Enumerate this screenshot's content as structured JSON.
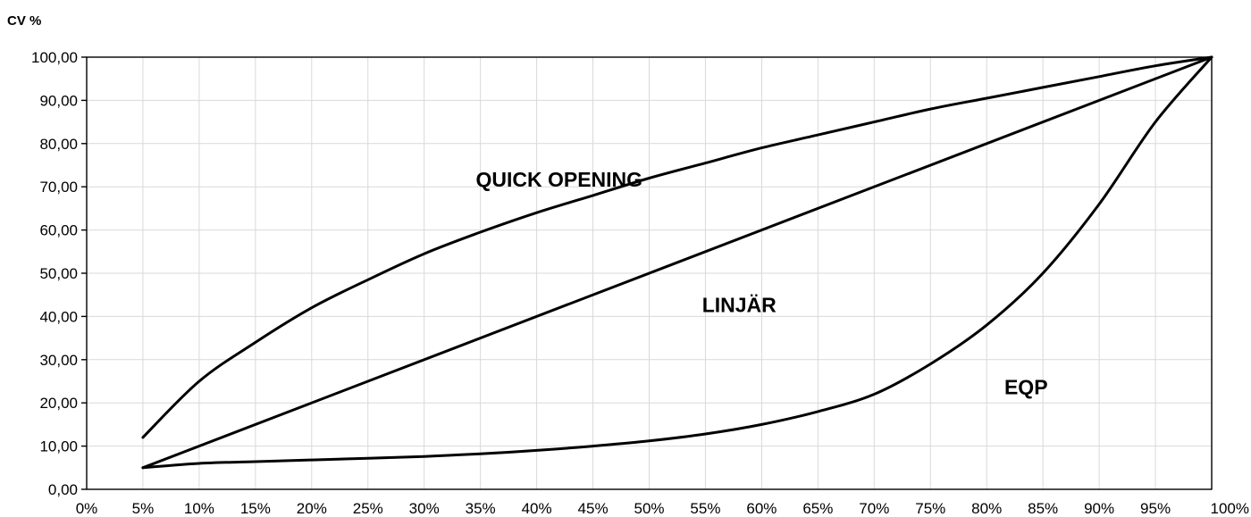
{
  "chart_data": {
    "type": "line",
    "ylabel": "CV %",
    "xlabel": "",
    "x_tick_labels": [
      "0%",
      "5%",
      "10%",
      "15%",
      "20%",
      "25%",
      "30%",
      "35%",
      "40%",
      "45%",
      "50%",
      "55%",
      "60%",
      "65%",
      "70%",
      "75%",
      "80%",
      "85%",
      "90%",
      "95%",
      "100%"
    ],
    "y_tick_labels": [
      "0,00",
      "10,00",
      "20,00",
      "30,00",
      "40,00",
      "50,00",
      "60,00",
      "70,00",
      "80,00",
      "90,00",
      "100,00"
    ],
    "xlim": [
      0,
      100
    ],
    "ylim": [
      0,
      100
    ],
    "grid": true,
    "colors": {
      "line": "#000000",
      "grid": "#d9d9d9"
    },
    "series": [
      {
        "name": "QUICK OPENING",
        "label_at": [
          42,
          70
        ],
        "x": [
          5,
          10,
          15,
          20,
          25,
          30,
          35,
          40,
          45,
          50,
          55,
          60,
          65,
          70,
          75,
          80,
          85,
          90,
          95,
          100
        ],
        "values": [
          12,
          25,
          34,
          42,
          48.5,
          54.5,
          59.5,
          64,
          68,
          72,
          75.5,
          79,
          82,
          85,
          88,
          90.5,
          93,
          95.5,
          98,
          100
        ]
      },
      {
        "name": "LINJÄR",
        "label_at": [
          58,
          41
        ],
        "x": [
          5,
          100
        ],
        "values": [
          5,
          100
        ]
      },
      {
        "name": "EQP",
        "label_at": [
          83.5,
          22
        ],
        "x": [
          5,
          10,
          15,
          20,
          25,
          30,
          35,
          40,
          45,
          50,
          55,
          60,
          65,
          70,
          75,
          80,
          85,
          90,
          95,
          100
        ],
        "values": [
          5,
          6,
          6.4,
          6.8,
          7.2,
          7.6,
          8.2,
          9,
          10,
          11.2,
          12.8,
          15,
          18,
          22,
          29,
          38,
          50,
          66,
          85,
          100
        ]
      }
    ]
  }
}
